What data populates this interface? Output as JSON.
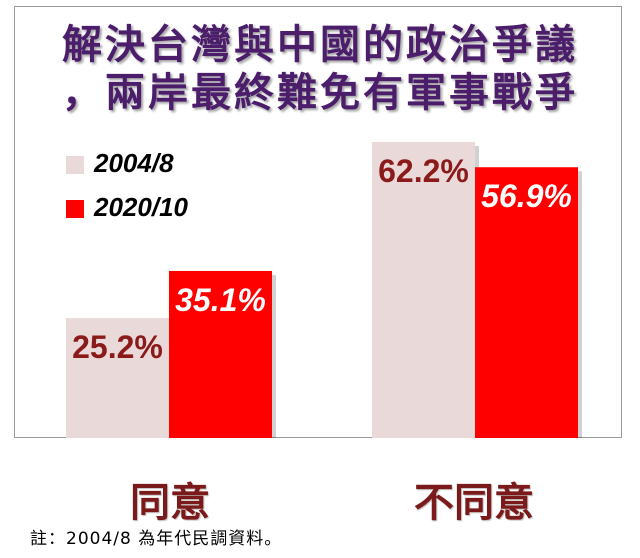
{
  "title_line1": "解決台灣與中國的政治爭議",
  "title_line2": "，兩岸最終難免有軍事戰爭",
  "note": "註：2004/8 為年代民調資料。",
  "colors": {
    "series1": "#ead9d9",
    "series2": "#ff0000",
    "title": "#4b1d6b",
    "label_dark": "#8b1a1a",
    "label_light": "#ffffff"
  },
  "chart_data": {
    "type": "bar",
    "categories": [
      "同意",
      "不同意"
    ],
    "series": [
      {
        "name": "2004/8",
        "values": [
          25.2,
          62.2
        ],
        "labels": [
          "25.2%",
          "62.2%"
        ]
      },
      {
        "name": "2020/10",
        "values": [
          35.1,
          56.9
        ],
        "labels": [
          "35.1%",
          "56.9%"
        ]
      }
    ],
    "ylim": [
      0,
      70
    ],
    "legend": "top-left",
    "grid": false
  }
}
